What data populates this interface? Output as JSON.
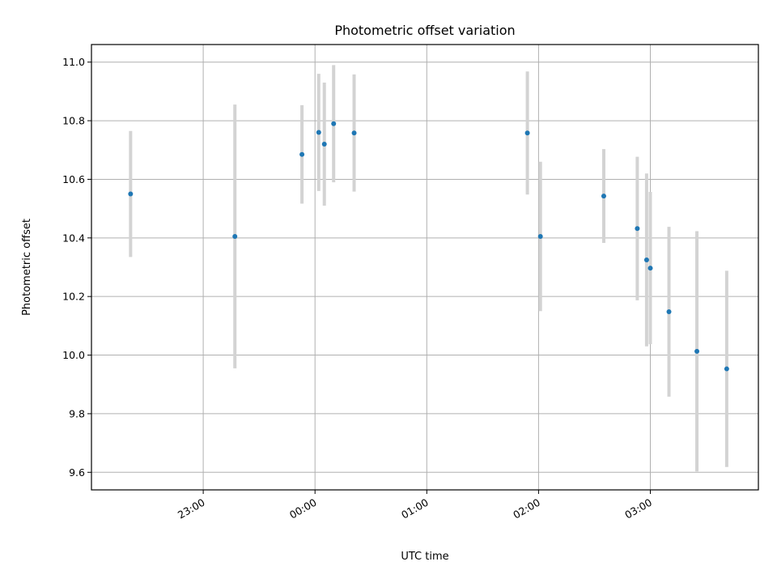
{
  "chart_data": {
    "type": "scatter",
    "title": "Photometric offset variation",
    "xlabel": "UTC time",
    "ylabel": "Photometric offset",
    "x_tick_labels": [
      "23:00",
      "00:00",
      "01:00",
      "02:00",
      "03:00"
    ],
    "y_tick_labels": [
      "9.6",
      "9.8",
      "10.0",
      "10.2",
      "10.4",
      "10.6",
      "10.8",
      "11.0"
    ],
    "xlim": [
      "22:00",
      "03:58"
    ],
    "ylim": [
      9.54,
      11.06
    ],
    "grid": true,
    "point_color": "#1f77b4",
    "errorbar_color": "#d3d3d3",
    "series": [
      {
        "points": [
          {
            "x": "22:21",
            "y": 10.55,
            "yerr": 0.215
          },
          {
            "x": "23:17",
            "y": 10.405,
            "yerr": 0.45
          },
          {
            "x": "23:53",
            "y": 10.685,
            "yerr": 0.168
          },
          {
            "x": "00:02",
            "y": 10.76,
            "yerr": 0.2
          },
          {
            "x": "00:05",
            "y": 10.72,
            "yerr": 0.21
          },
          {
            "x": "00:10",
            "y": 10.79,
            "yerr": 0.2
          },
          {
            "x": "00:21",
            "y": 10.758,
            "yerr": 0.2
          },
          {
            "x": "01:54",
            "y": 10.758,
            "yerr": 0.21
          },
          {
            "x": "02:01",
            "y": 10.405,
            "yerr": 0.255
          },
          {
            "x": "02:35",
            "y": 10.543,
            "yerr": 0.16
          },
          {
            "x": "02:53",
            "y": 10.432,
            "yerr": 0.245
          },
          {
            "x": "02:58",
            "y": 10.325,
            "yerr": 0.295
          },
          {
            "x": "03:00",
            "y": 10.297,
            "yerr": 0.26
          },
          {
            "x": "03:10",
            "y": 10.148,
            "yerr": 0.29
          },
          {
            "x": "03:25",
            "y": 10.013,
            "yerr": 0.41
          },
          {
            "x": "03:41",
            "y": 9.953,
            "yerr": 0.335
          }
        ]
      }
    ]
  }
}
